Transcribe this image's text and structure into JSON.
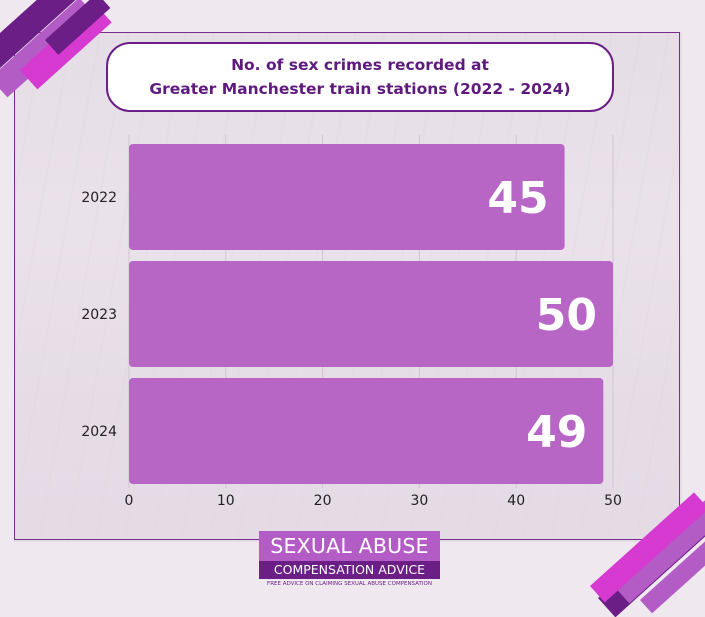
{
  "chart_data": {
    "type": "bar",
    "orientation": "horizontal",
    "title_lines": [
      "No. of sex crimes recorded at",
      "Greater Manchester train stations (2022 - 2024)"
    ],
    "categories": [
      "2022",
      "2023",
      "2024"
    ],
    "values": [
      45,
      50,
      49
    ],
    "value_labels": [
      "45",
      "50",
      "49"
    ],
    "xlim": [
      0,
      50
    ],
    "x_ticks": [
      "0",
      "10",
      "20",
      "30",
      "40",
      "50"
    ],
    "grid": "vertical",
    "bar_color": "#b866c6"
  },
  "logo": {
    "line1": "SEXUAL ABUSE",
    "line2": "COMPENSATION ADVICE",
    "tagline": "FREE ADVICE ON CLAIMING SEXUAL ABUSE COMPENSATION"
  },
  "colors": {
    "primary": "#6b1f86",
    "accent": "#b45cc6",
    "magenta": "#d63ad0",
    "background": "#efe8ef"
  }
}
